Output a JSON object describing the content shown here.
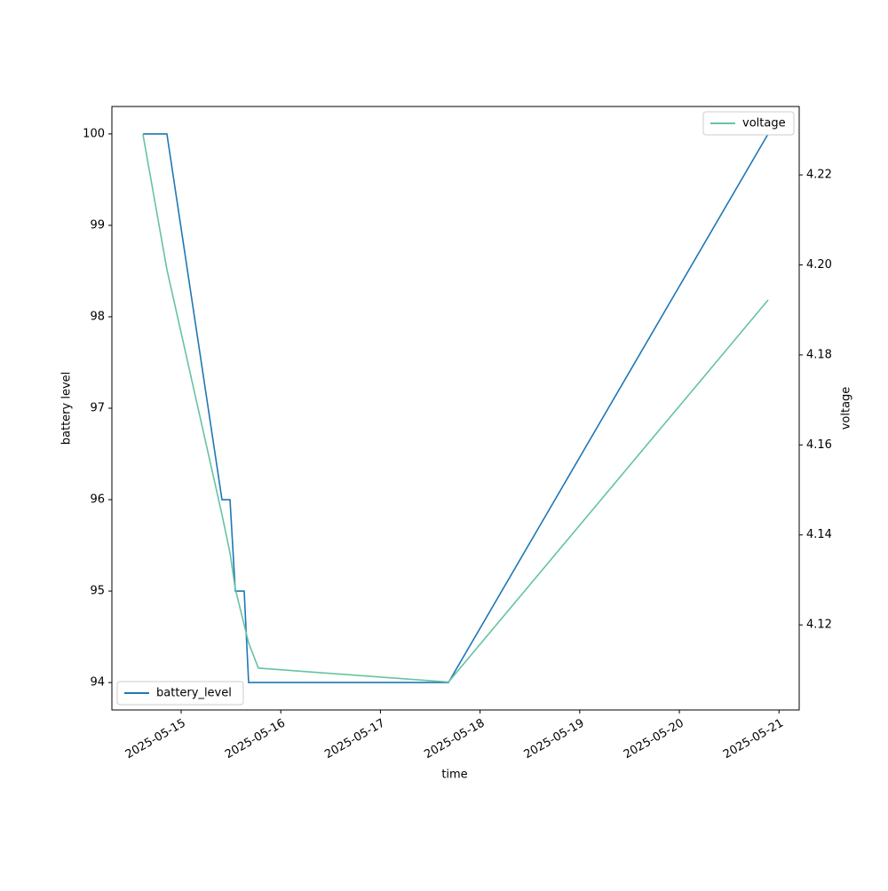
{
  "chart_data": {
    "type": "line",
    "x_label": "time",
    "y_label": "battery level",
    "y2_label": "voltage",
    "x": [
      "2025-05-14T14:48",
      "2025-05-14T20:34",
      "2025-05-15T09:50",
      "2025-05-15T11:46",
      "2025-05-15T13:03",
      "2025-05-15T15:11",
      "2025-05-15T16:15",
      "2025-05-15T18:36",
      "2025-05-17T16:23",
      "2025-05-20T21:23"
    ],
    "series": [
      {
        "name": "battery_level",
        "color": "#1f77b4",
        "values": [
          100,
          100,
          96,
          96,
          95,
          95,
          94,
          94,
          94,
          100
        ]
      },
      {
        "name": "voltage",
        "color": "#66c2a5",
        "axis": "y2",
        "values": [
          4.229,
          4.199,
          4.1445,
          4.136,
          4.128,
          4.12,
          4.116,
          4.1104,
          4.1073,
          4.1922
        ]
      }
    ],
    "xlim": [
      "2025-05-14T07:19",
      "2025-05-21T04:52"
    ],
    "xticks": [
      "2025-05-15",
      "2025-05-16",
      "2025-05-17",
      "2025-05-18",
      "2025-05-19",
      "2025-05-20",
      "2025-05-21"
    ],
    "ylim": [
      93.7,
      100.3
    ],
    "yticks": [
      94,
      95,
      96,
      97,
      98,
      99,
      100
    ],
    "y2lim": [
      4.1011,
      4.2352
    ],
    "y2ticks": [
      4.12,
      4.14,
      4.16,
      4.18,
      {
        "value": 4.2,
        "label": "4.20"
      },
      4.22
    ],
    "legend": [
      "lower left",
      "upper right"
    ]
  }
}
